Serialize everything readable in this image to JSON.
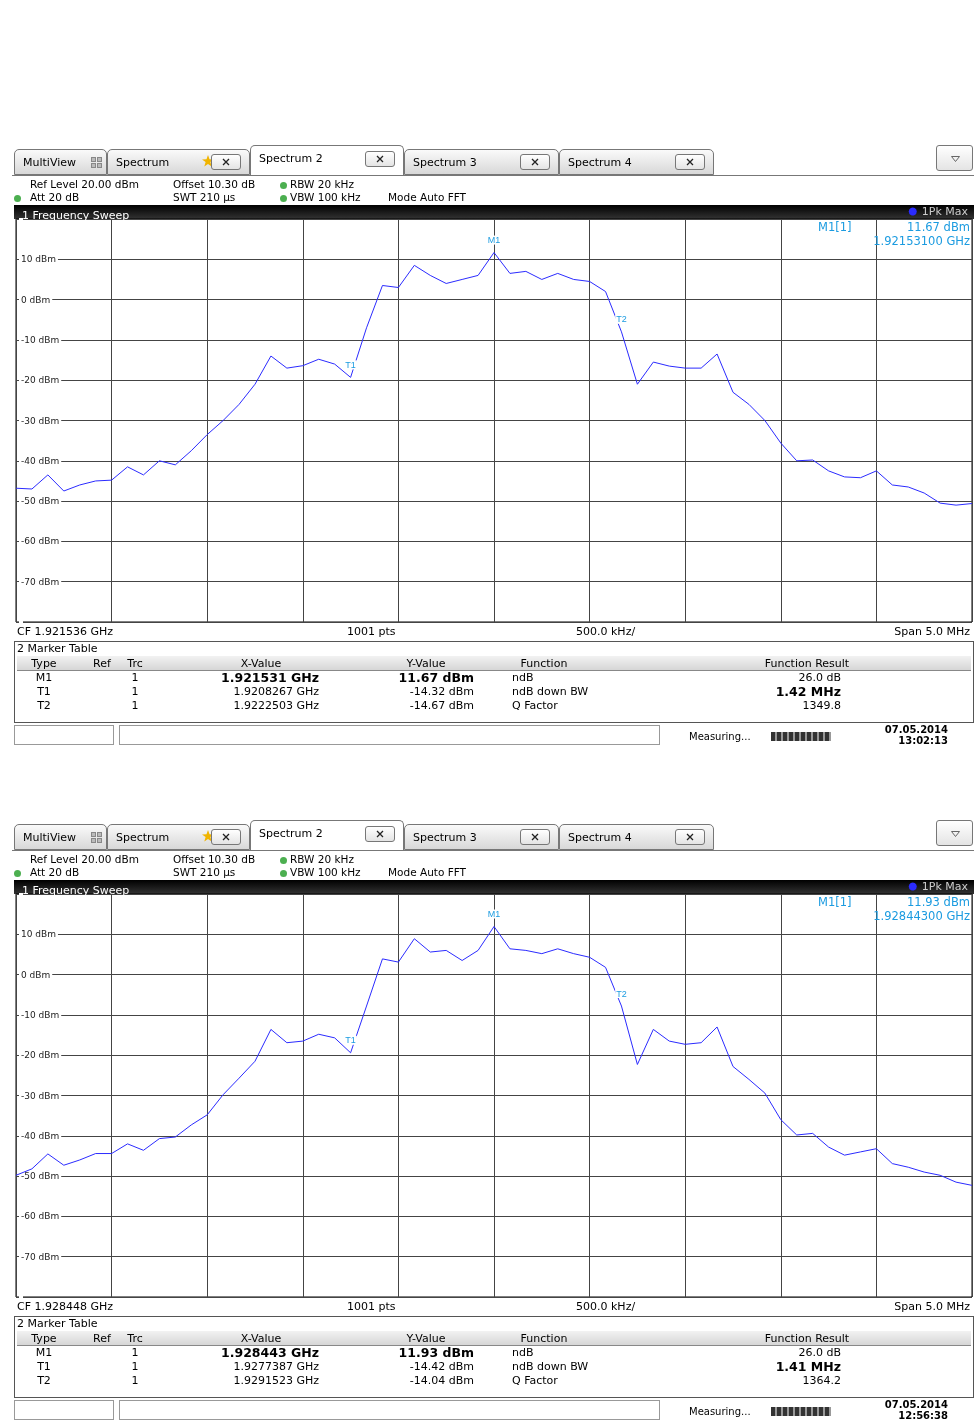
{
  "chart_data": [
    {
      "type": "line",
      "title": "1 Frequency Sweep",
      "categories": [
        null,
        null,
        null,
        null,
        null,
        null,
        null,
        null,
        null,
        null,
        null,
        null,
        null,
        null,
        null,
        null,
        null,
        null,
        null,
        null,
        null,
        null,
        null,
        null,
        null,
        null,
        null,
        null,
        null,
        null,
        null,
        null,
        null,
        null,
        null,
        null,
        null,
        null,
        null,
        null,
        null,
        null,
        null,
        null,
        null,
        null,
        null,
        null,
        null,
        null,
        null,
        null,
        null,
        null,
        null,
        null,
        null,
        null,
        null,
        null,
        null
      ],
      "series": [
        {
          "name": "1Pk Max",
          "color": "#2b2bff",
          "values": [
            -46.8,
            -47,
            -43.5,
            -47.5,
            -46,
            -45,
            -44.8,
            -41.5,
            -43.5,
            -40,
            -41,
            -37.5,
            -33.5,
            -30,
            -26,
            -21,
            -14,
            -17,
            -16.4,
            -14.8,
            -16,
            -19.3,
            -7,
            3.5,
            3,
            8.5,
            6,
            4,
            5,
            6,
            11.67,
            6.5,
            7,
            5,
            6.5,
            5,
            4.5,
            2,
            -8,
            -21,
            -15.5,
            -16.5,
            -17,
            -17,
            -13.5,
            -23,
            -26,
            -30,
            -35.6,
            -40,
            -39.8,
            -42.5,
            -44,
            -44.2,
            -42.5,
            -46,
            -46.5,
            -48,
            -50.5,
            -51,
            -50.6
          ],
          "value_labels": [
            null,
            null,
            null,
            null,
            null,
            null,
            null,
            null,
            null,
            null,
            null,
            null,
            null,
            null,
            null,
            null,
            null,
            null,
            null,
            null,
            null,
            "T1",
            null,
            null,
            null,
            null,
            null,
            null,
            null,
            null,
            "M1",
            null,
            null,
            null,
            null,
            null,
            null,
            null,
            "T2",
            null,
            null,
            null,
            null,
            null,
            null,
            null,
            null,
            null,
            null,
            null,
            null,
            null,
            null,
            null,
            null,
            null,
            null,
            null,
            null,
            null,
            null
          ]
        }
      ],
      "ylim": [
        -80,
        20
      ],
      "yticks": [
        {
          "value": 10,
          "label": "10 dBm"
        },
        {
          "value": 0,
          "label": "0 dBm"
        },
        {
          "value": -10,
          "label": "-10 dBm"
        },
        {
          "value": -20,
          "label": "-20 dBm"
        },
        {
          "value": -30,
          "label": "-30 dBm"
        },
        {
          "value": -40,
          "label": "-40 dBm"
        },
        {
          "value": -50,
          "label": "-50 dBm"
        },
        {
          "value": -60,
          "label": "-60 dBm"
        },
        {
          "value": -70,
          "label": "-70 dBm"
        }
      ],
      "grid": true,
      "legend": "top right",
      "tick_labels": "y",
      "annotations": [
        "MultiView",
        "Spectrum",
        "Spectrum 2",
        "Spectrum 3",
        "Spectrum 4",
        "Ref Level 20.00 dBm",
        "Offset 10.30 dB",
        "RBW 20 kHz",
        "Att 20 dB",
        "SWT 210 µs",
        "VBW 100 kHz",
        "Mode Auto FFT",
        "M1[1]",
        "11.67 dBm",
        "1.92153100 GHz",
        "CF 1.921536 GHz",
        "1001 pts",
        "500.0 kHz/",
        "Span 5.0 MHz",
        "2 Marker Table",
        "Type",
        "Ref",
        "Trc",
        "X-Value",
        "Y-Value",
        "Function",
        "Function Result",
        "M1",
        "1",
        "1.921531 GHz",
        "11.67 dBm",
        "ndB",
        "26.0 dB",
        "T1",
        "1",
        "1.9208267 GHz",
        "-14.32 dBm",
        "ndB down BW",
        "1.42 MHz",
        "T2",
        "1",
        "1.9222503 GHz",
        "-14.67 dBm",
        "Q Factor",
        "1349.8",
        "Measuring...",
        "07.05.2014",
        "13:02:13"
      ]
    },
    {
      "type": "line",
      "title": "1 Frequency Sweep",
      "categories": [
        null,
        null,
        null,
        null,
        null,
        null,
        null,
        null,
        null,
        null,
        null,
        null,
        null,
        null,
        null,
        null,
        null,
        null,
        null,
        null,
        null,
        null,
        null,
        null,
        null,
        null,
        null,
        null,
        null,
        null,
        null,
        null,
        null,
        null,
        null,
        null,
        null,
        null,
        null,
        null,
        null,
        null,
        null,
        null,
        null,
        null,
        null,
        null,
        null,
        null,
        null,
        null,
        null,
        null,
        null,
        null,
        null,
        null,
        null,
        null,
        null
      ],
      "series": [
        {
          "name": "1Pk Max",
          "color": "#2b2bff",
          "values": [
            -49.8,
            -48.2,
            -44.5,
            -47.3,
            -46,
            -44.4,
            -44.4,
            -42,
            -43.6,
            -40.7,
            -40.3,
            -37.3,
            -34.8,
            -29.8,
            -25.7,
            -21.5,
            -13.6,
            -16.9,
            -16.5,
            -14.8,
            -15.7,
            -19.4,
            -7.8,
            3.9,
            3.1,
            8.9,
            5.6,
            6,
            3.5,
            6,
            11.93,
            6.4,
            6,
            5.2,
            6.4,
            5.2,
            4.3,
            1.8,
            -7.8,
            -22.3,
            -13.6,
            -16.5,
            -17.3,
            -16.9,
            -13,
            -22.8,
            -26,
            -29.4,
            -36,
            -39.8,
            -39.4,
            -42.8,
            -44.8,
            -44,
            -43.2,
            -46.9,
            -47.8,
            -49,
            -49.8,
            -51.5,
            -52.3
          ],
          "value_labels": [
            null,
            null,
            null,
            null,
            null,
            null,
            null,
            null,
            null,
            null,
            null,
            null,
            null,
            null,
            null,
            null,
            null,
            null,
            null,
            null,
            null,
            "T1",
            null,
            null,
            null,
            null,
            null,
            null,
            null,
            null,
            "M1",
            null,
            null,
            null,
            null,
            null,
            null,
            null,
            "T2",
            null,
            null,
            null,
            null,
            null,
            null,
            null,
            null,
            null,
            null,
            null,
            null,
            null,
            null,
            null,
            null,
            null,
            null,
            null,
            null,
            null,
            null
          ]
        }
      ],
      "ylim": [
        -80,
        20
      ],
      "yticks": [
        {
          "value": 10,
          "label": "10 dBm"
        },
        {
          "value": 0,
          "label": "0 dBm"
        },
        {
          "value": -10,
          "label": "-10 dBm"
        },
        {
          "value": -20,
          "label": "-20 dBm"
        },
        {
          "value": -30,
          "label": "-30 dBm"
        },
        {
          "value": -40,
          "label": "-40 dBm"
        },
        {
          "value": -50,
          "label": "-50 dBm"
        },
        {
          "value": -60,
          "label": "-60 dBm"
        },
        {
          "value": -70,
          "label": "-70 dBm"
        }
      ],
      "grid": true,
      "legend": "top right",
      "tick_labels": "y",
      "annotations": [
        "MultiView",
        "Spectrum",
        "Spectrum 2",
        "Spectrum 3",
        "Spectrum 4",
        "Ref Level 20.00 dBm",
        "Offset 10.30 dB",
        "RBW 20 kHz",
        "Att 20 dB",
        "SWT 210 µs",
        "VBW 100 kHz",
        "Mode Auto FFT",
        "M1[1]",
        "11.93 dBm",
        "1.92844300 GHz",
        "CF 1.928448 GHz",
        "1001 pts",
        "500.0 kHz/",
        "Span 5.0 MHz",
        "2 Marker Table",
        "Type",
        "Ref",
        "Trc",
        "X-Value",
        "Y-Value",
        "Function",
        "Function Result",
        "M1",
        "1",
        "1.928443 GHz",
        "11.93 dBm",
        "ndB",
        "26.0 dB",
        "T1",
        "1",
        "1.9277387 GHz",
        "-14.42 dBm",
        "ndB down BW",
        "1.41 MHz",
        "T2",
        "1",
        "1.9291523 GHz",
        "-14.04 dBm",
        "Q Factor",
        "1364.2",
        "Measuring...",
        "07.05.2014",
        "12:56:38"
      ]
    }
  ]
}
